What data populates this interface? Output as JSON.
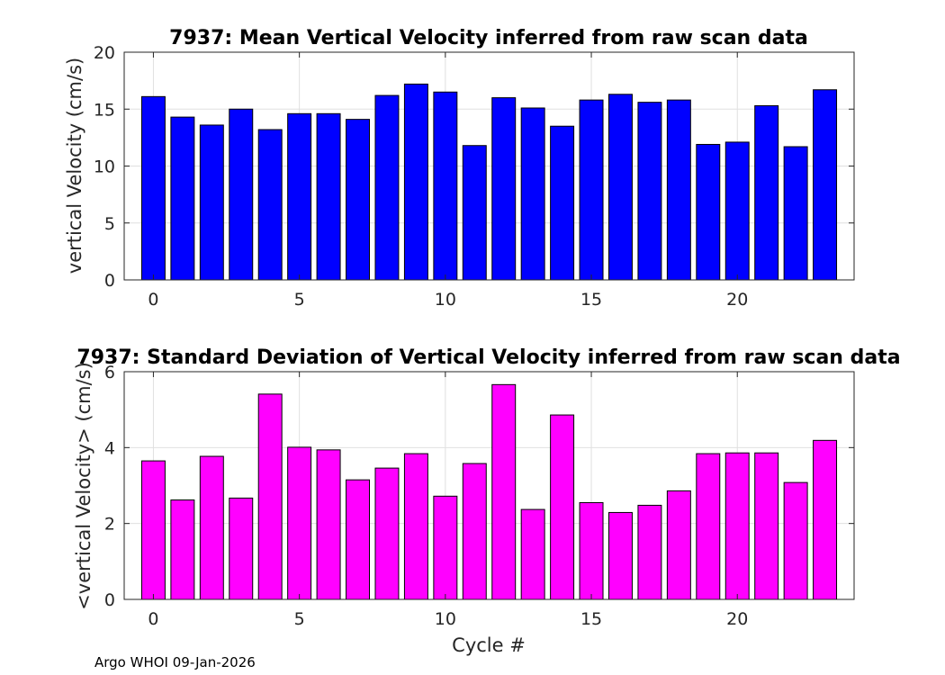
{
  "footer": "Argo WHOI 09-Jan-2026",
  "chart_data": [
    {
      "type": "bar",
      "title": "7937: Mean Vertical Velocity inferred from raw scan data",
      "xlabel": "",
      "ylabel": "vertical Velocity (cm/s)",
      "x": [
        0,
        1,
        2,
        3,
        4,
        5,
        6,
        7,
        8,
        9,
        10,
        11,
        12,
        13,
        14,
        15,
        16,
        17,
        18,
        19,
        20,
        21,
        22,
        23
      ],
      "values": [
        16.1,
        14.3,
        13.6,
        15.0,
        13.2,
        14.6,
        14.6,
        14.1,
        16.2,
        17.2,
        16.5,
        11.8,
        16.0,
        15.1,
        13.5,
        15.8,
        16.3,
        15.6,
        15.8,
        11.9,
        12.1,
        15.3,
        11.7,
        16.7
      ],
      "xlim": [
        -1,
        24
      ],
      "ylim": [
        0,
        20
      ],
      "xticks": [
        0,
        5,
        10,
        15,
        20
      ],
      "yticks": [
        0,
        5,
        10,
        15,
        20
      ],
      "bar_color": "#0000ff",
      "grid": true
    },
    {
      "type": "bar",
      "title": "7937: Standard Deviation of Vertical Velocity inferred from raw scan data",
      "xlabel": "Cycle #",
      "ylabel": "<vertical Velocity> (cm/s)",
      "x": [
        0,
        1,
        2,
        3,
        4,
        5,
        6,
        7,
        8,
        9,
        10,
        11,
        12,
        13,
        14,
        15,
        16,
        17,
        18,
        19,
        20,
        21,
        22,
        23
      ],
      "values": [
        3.65,
        2.62,
        3.77,
        2.67,
        5.41,
        4.01,
        3.94,
        3.15,
        3.46,
        3.84,
        2.72,
        3.58,
        5.66,
        2.37,
        4.86,
        2.55,
        2.29,
        2.48,
        2.86,
        3.84,
        3.86,
        3.86,
        3.08,
        4.19
      ],
      "xlim": [
        -1,
        24
      ],
      "ylim": [
        0,
        6
      ],
      "xticks": [
        0,
        5,
        10,
        15,
        20
      ],
      "yticks": [
        0,
        2,
        4,
        6
      ],
      "bar_color": "#ff00ff",
      "grid": true
    }
  ]
}
